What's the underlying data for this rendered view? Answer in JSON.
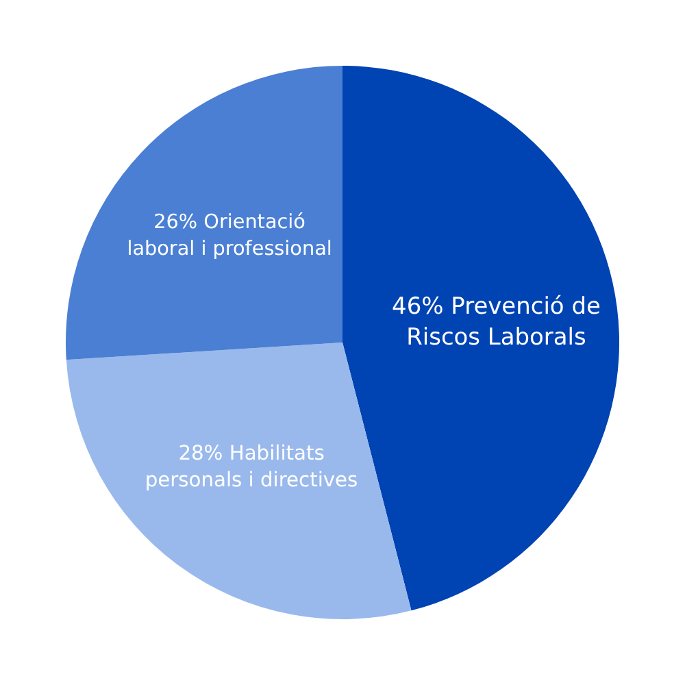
{
  "chart_data": {
    "type": "pie",
    "categories": [
      "Prevenció de Riscos Laborals",
      "Habilitats personals i directives",
      "Orientació laboral i professional"
    ],
    "values": [
      46,
      28,
      26
    ],
    "value_labels": [
      "46%",
      "28%",
      "26%"
    ],
    "colors": [
      "#0043b3",
      "#99b9ec",
      "#4a7fd4"
    ],
    "legend": false
  }
}
